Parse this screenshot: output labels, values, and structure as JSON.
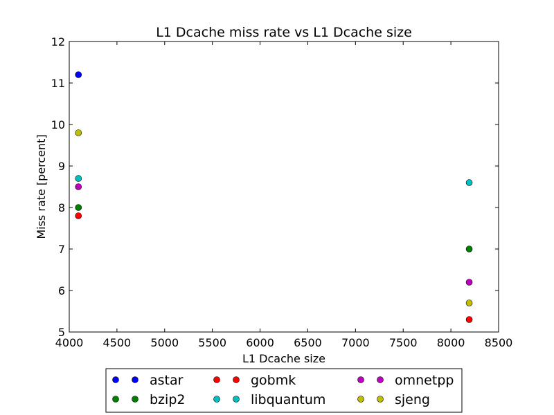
{
  "chart_data": {
    "type": "scatter",
    "title": "L1 Dcache miss rate vs L1 Dcache size",
    "xlabel": "L1 Dcache size",
    "ylabel": "Miss rate [percent]",
    "xlim": [
      4000,
      8500
    ],
    "ylim": [
      5,
      12
    ],
    "xticks": [
      "4000",
      "4500",
      "5000",
      "5500",
      "6000",
      "6500",
      "7000",
      "7500",
      "8000",
      "8500"
    ],
    "yticks": [
      "5",
      "6",
      "7",
      "8",
      "9",
      "10",
      "11",
      "12"
    ],
    "grid": false,
    "legend_position": "below plot, 3 columns",
    "series": [
      {
        "name": "astar",
        "color": "#0000ff",
        "x": [
          4096,
          8192
        ],
        "y": [
          11.2,
          null
        ]
      },
      {
        "name": "bzip2",
        "color": "#008000",
        "x": [
          4096,
          8192
        ],
        "y": [
          8.0,
          7.0
        ]
      },
      {
        "name": "gobmk",
        "color": "#ff0000",
        "x": [
          4096,
          8192
        ],
        "y": [
          7.8,
          5.3
        ]
      },
      {
        "name": "libquantum",
        "color": "#00bfbf",
        "x": [
          4096,
          8192
        ],
        "y": [
          8.7,
          8.6
        ]
      },
      {
        "name": "omnetpp",
        "color": "#bf00bf",
        "x": [
          4096,
          8192
        ],
        "y": [
          8.5,
          6.2
        ]
      },
      {
        "name": "sjeng",
        "color": "#bfbf00",
        "x": [
          4096,
          8192
        ],
        "y": [
          9.8,
          5.7
        ]
      }
    ]
  }
}
